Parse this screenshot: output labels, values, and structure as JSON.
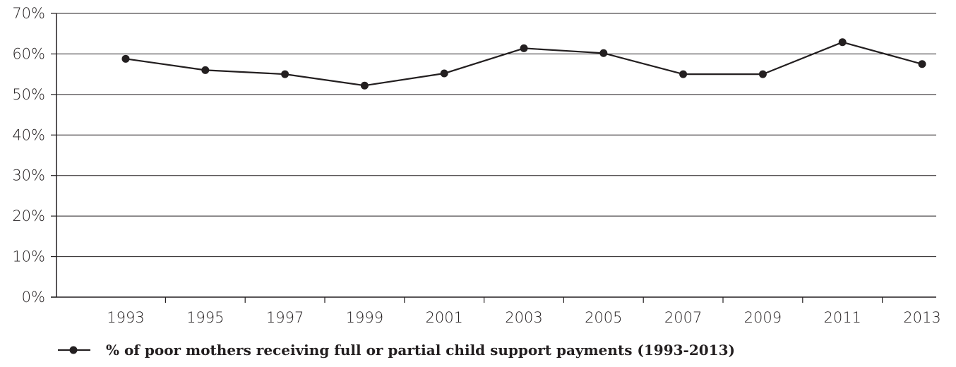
{
  "chart_data": {
    "type": "line",
    "title": "",
    "xlabel": "",
    "ylabel": "",
    "categories": [
      "1993",
      "1995",
      "1997",
      "1999",
      "2001",
      "2003",
      "2005",
      "2007",
      "2009",
      "2011",
      "2013"
    ],
    "y_tick_labels": [
      "0%",
      "10%",
      "20%",
      "30%",
      "40%",
      "50%",
      "60%",
      "70%"
    ],
    "ylim": [
      0,
      70
    ],
    "grid": "horizontal",
    "legend_position": "bottom-left",
    "series": [
      {
        "name": "% of poor mothers receiving full or partial child support payments (1993-2013)",
        "values": [
          58.8,
          56.0,
          55.0,
          52.2,
          55.2,
          61.4,
          60.2,
          55.0,
          55.0,
          62.9,
          57.5
        ]
      }
    ]
  },
  "colors": {
    "line": "#231f20",
    "grid": "#231f20",
    "text": "#231f20"
  }
}
